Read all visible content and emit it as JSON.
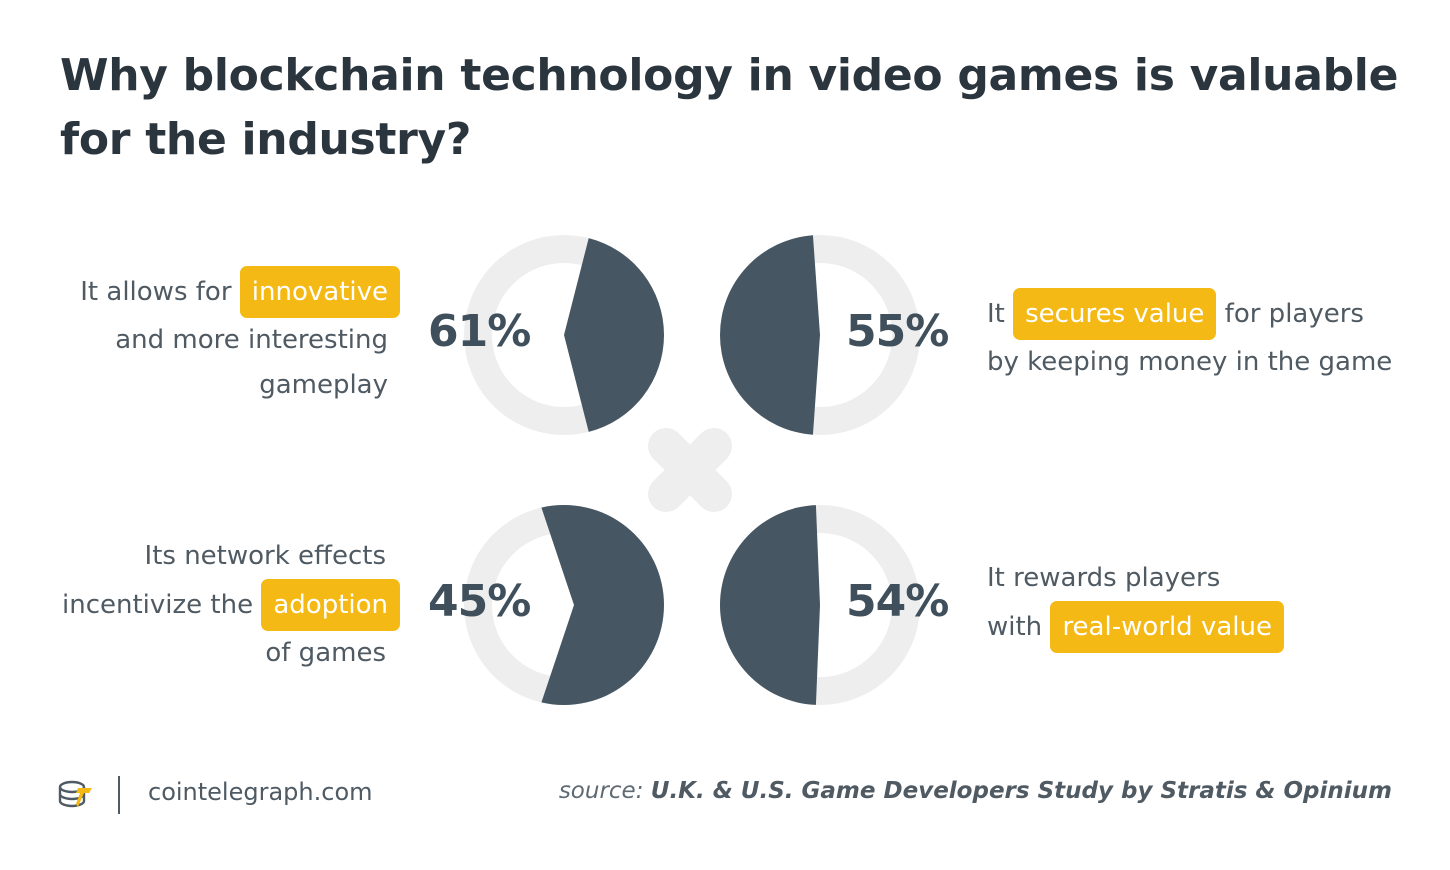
{
  "title": {
    "line1": "Why blockchain technology in video games is valuable",
    "line2": "for the industry?"
  },
  "colors": {
    "slice": "#465662",
    "track": "#eeeeee",
    "highlight": "#f5b915",
    "text": "#4f5a63"
  },
  "chart_data": {
    "type": "pie",
    "title": "Why blockchain technology in video games is valuable for the industry?",
    "series": [
      {
        "value": 61,
        "label": "61%",
        "text_before": "It allows for",
        "highlight": "innovative",
        "text_after": "and more interesting gameplay"
      },
      {
        "value": 55,
        "label": "55%",
        "text_before": "It",
        "highlight": "secures value",
        "text_after": "for players by keeping money in the game"
      },
      {
        "value": 45,
        "label": "45%",
        "text_before": "Its network effects incentivize the",
        "highlight": "adoption",
        "text_after": "of games"
      },
      {
        "value": 54,
        "label": "54%",
        "text_before": "It rewards players with",
        "highlight": "real-world value",
        "text_after": ""
      }
    ]
  },
  "descriptions": {
    "q1": {
      "l1a": "It allows for",
      "hl": "innovative",
      "l2": "and more interesting",
      "l3": "gameplay"
    },
    "q2": {
      "l1a": "It",
      "hl": "secures value",
      "l1b": "for players",
      "l2": "by keeping money in the game"
    },
    "q3": {
      "l1": "Its network effects",
      "l2a": "incentivize the",
      "hl": "adoption",
      "l3": "of games"
    },
    "q4": {
      "l1": "It rewards players",
      "l2a": "with",
      "hl": "real-world value"
    }
  },
  "footer": {
    "site": "cointelegraph.com",
    "source_label": "source:",
    "source_text": "U.K. & U.S. Game Developers Study by Stratis & Opinium",
    "logo_icon": "cointelegraph-logo-icon"
  }
}
